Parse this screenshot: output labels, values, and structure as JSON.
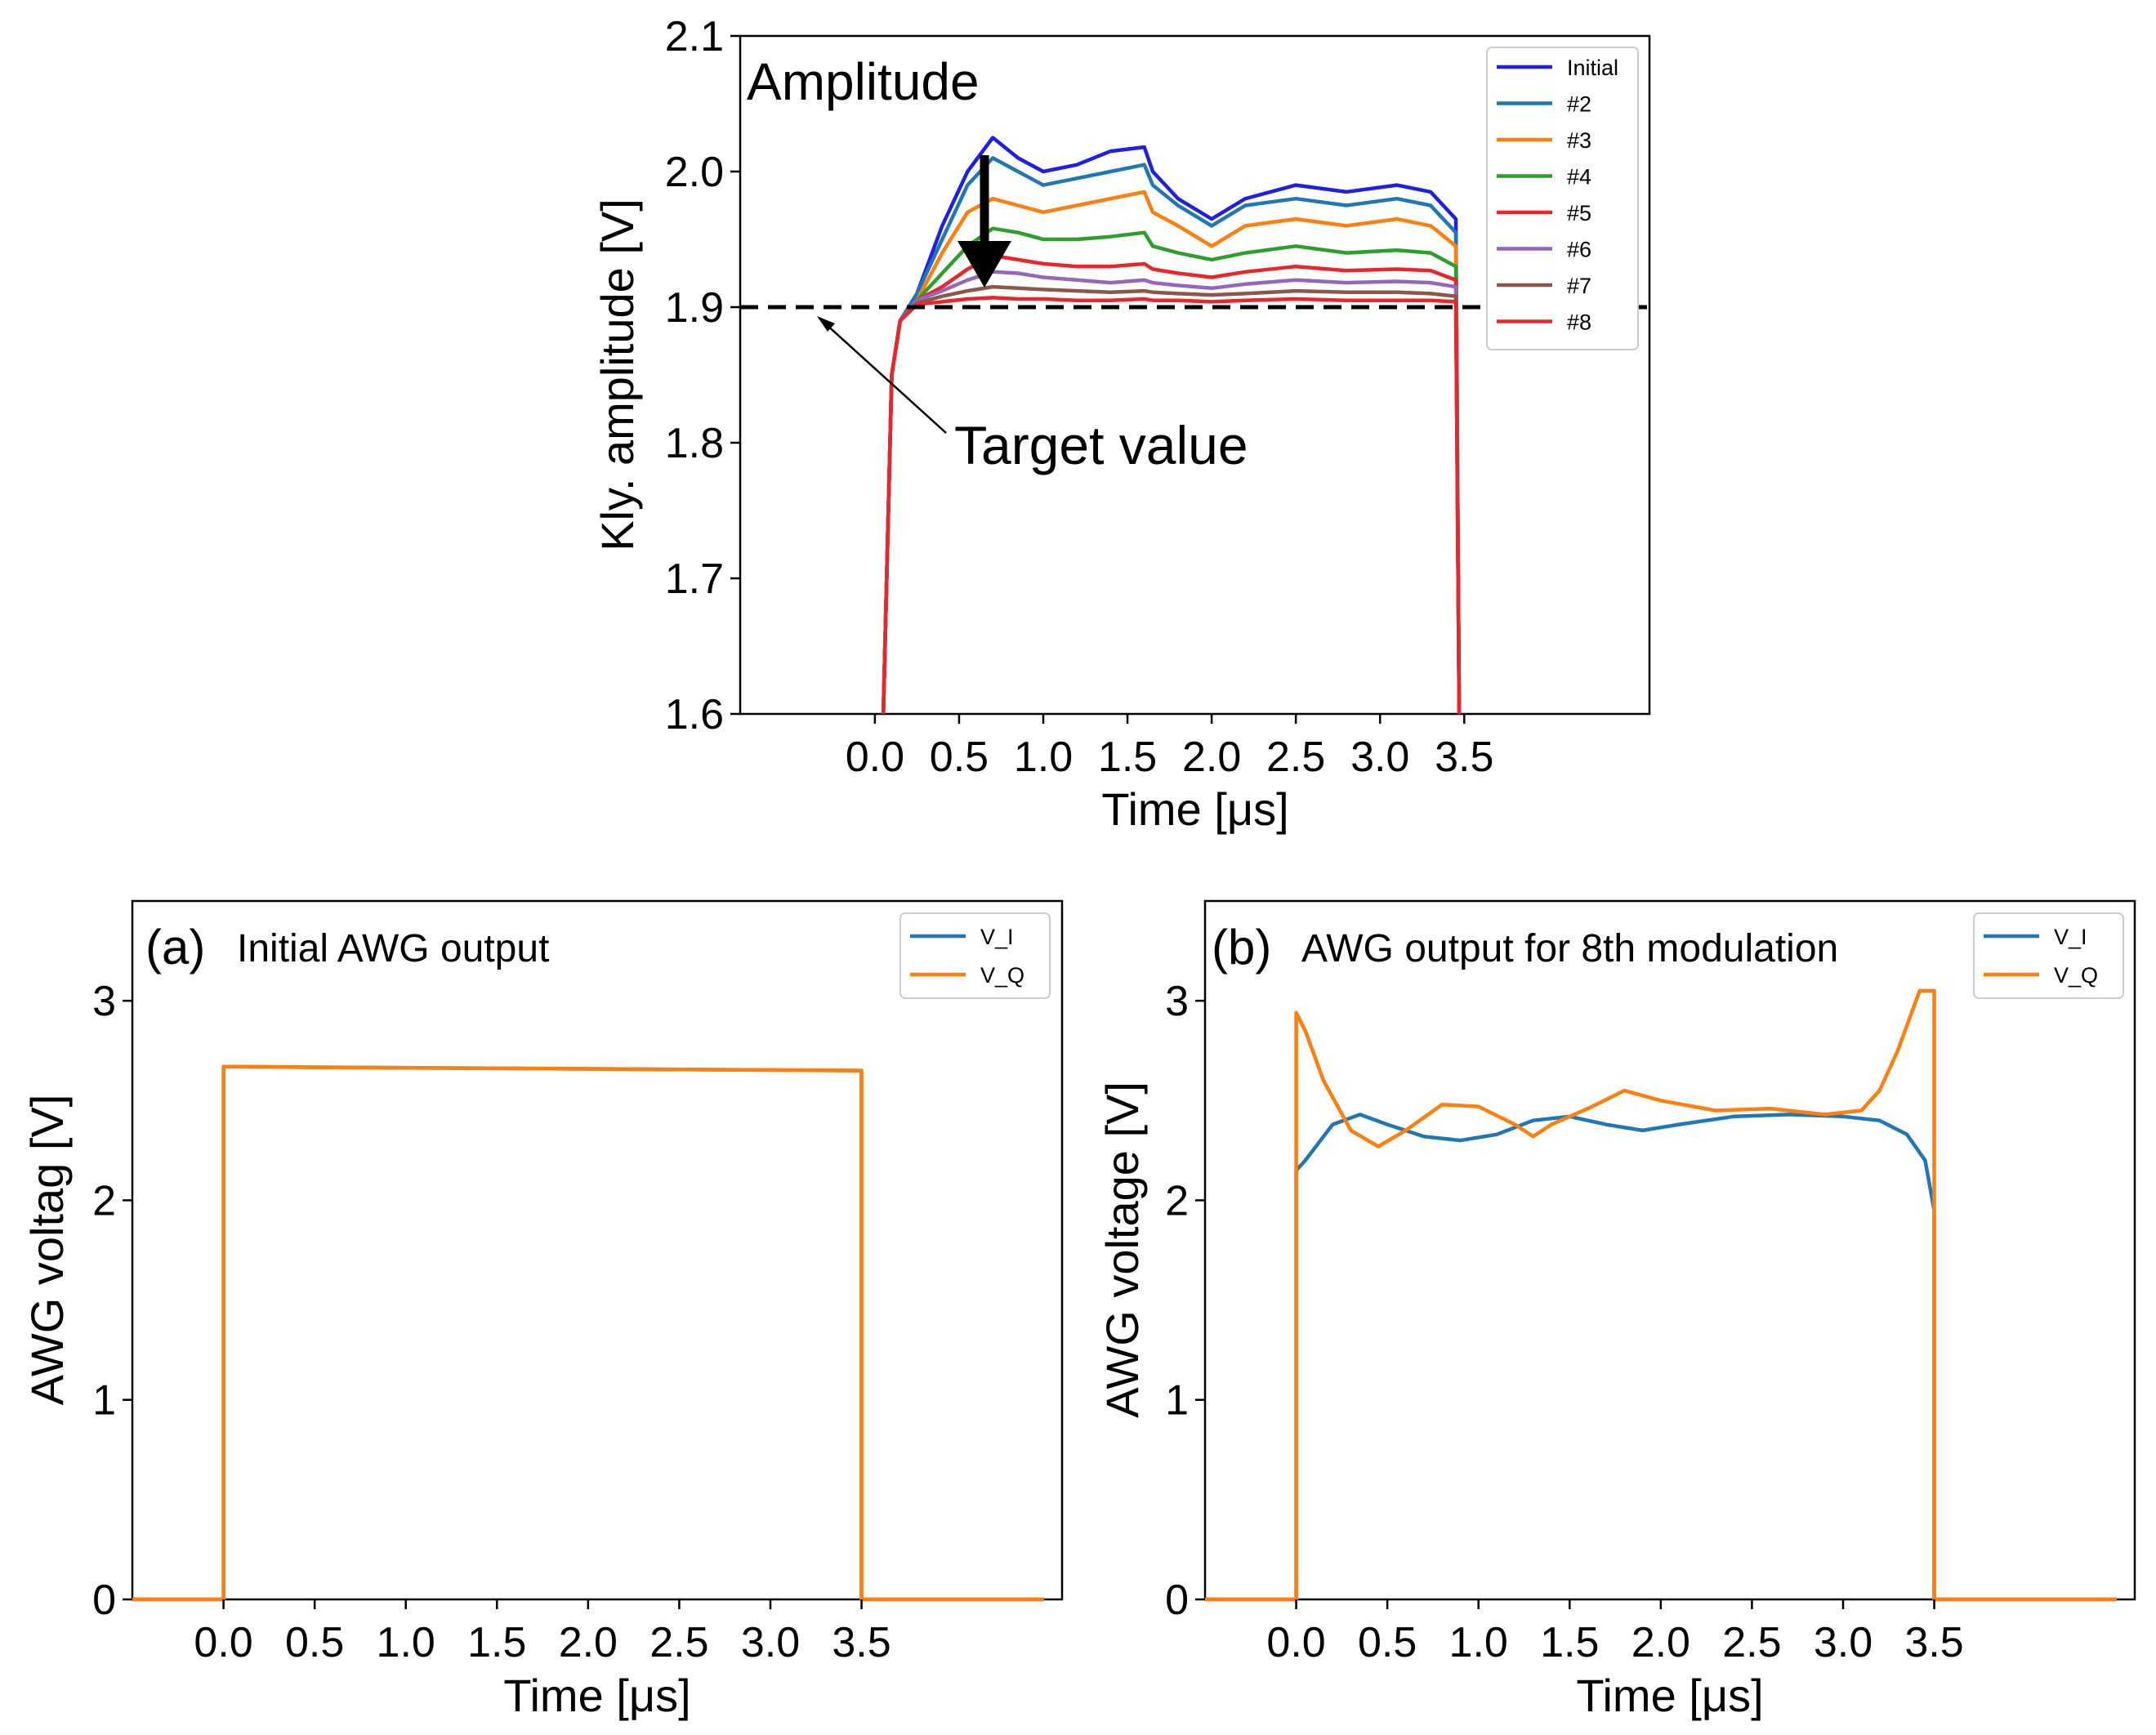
{
  "chart_data": [
    {
      "id": "top",
      "type": "line",
      "title": "Amplitude",
      "xlabel": "Time [μs]",
      "ylabel": "Kly. amplitude [V]",
      "xlim": [
        -0.8,
        4.6
      ],
      "ylim": [
        1.6,
        2.1
      ],
      "xticks": [
        "0.0",
        "0.5",
        "1.0",
        "1.5",
        "2.0",
        "2.5",
        "3.0",
        "3.5"
      ],
      "yticks": [
        "1.6",
        "1.7",
        "1.8",
        "1.9",
        "2.0",
        "2.1"
      ],
      "legend_position": "top-right",
      "target_value": 1.9,
      "annotation": "Target value",
      "colors": {
        "Initial": "#1f1fe6",
        "#2": "#1f77b4",
        "#3": "#ff7f0e",
        "#4": "#2ca02c",
        "#5": "#e8262b",
        "#6": "#9467bd",
        "#7": "#8c564b",
        "#8": "#e8262b"
      },
      "series": [
        {
          "name": "Initial",
          "points": [
            [
              0.05,
              1.6
            ],
            [
              0.1,
              1.85
            ],
            [
              0.15,
              1.89
            ],
            [
              0.25,
              1.91
            ],
            [
              0.4,
              1.96
            ],
            [
              0.55,
              2.0
            ],
            [
              0.7,
              2.025
            ],
            [
              0.85,
              2.01
            ],
            [
              1.0,
              2.0
            ],
            [
              1.2,
              2.005
            ],
            [
              1.4,
              2.015
            ],
            [
              1.6,
              2.018
            ],
            [
              1.65,
              2.0
            ],
            [
              1.8,
              1.98
            ],
            [
              2.0,
              1.965
            ],
            [
              2.2,
              1.98
            ],
            [
              2.5,
              1.99
            ],
            [
              2.8,
              1.985
            ],
            [
              3.1,
              1.99
            ],
            [
              3.3,
              1.985
            ],
            [
              3.45,
              1.965
            ],
            [
              3.47,
              1.6
            ]
          ]
        },
        {
          "name": "#2",
          "points": [
            [
              0.05,
              1.6
            ],
            [
              0.1,
              1.85
            ],
            [
              0.15,
              1.89
            ],
            [
              0.25,
              1.91
            ],
            [
              0.4,
              1.95
            ],
            [
              0.55,
              1.99
            ],
            [
              0.7,
              2.01
            ],
            [
              0.85,
              2.0
            ],
            [
              1.0,
              1.99
            ],
            [
              1.2,
              1.995
            ],
            [
              1.4,
              2.0
            ],
            [
              1.6,
              2.005
            ],
            [
              1.65,
              1.99
            ],
            [
              1.8,
              1.975
            ],
            [
              2.0,
              1.96
            ],
            [
              2.2,
              1.975
            ],
            [
              2.5,
              1.98
            ],
            [
              2.8,
              1.975
            ],
            [
              3.1,
              1.98
            ],
            [
              3.3,
              1.975
            ],
            [
              3.45,
              1.955
            ],
            [
              3.47,
              1.6
            ]
          ]
        },
        {
          "name": "#3",
          "points": [
            [
              0.05,
              1.6
            ],
            [
              0.1,
              1.85
            ],
            [
              0.15,
              1.89
            ],
            [
              0.25,
              1.905
            ],
            [
              0.4,
              1.94
            ],
            [
              0.55,
              1.97
            ],
            [
              0.7,
              1.98
            ],
            [
              0.85,
              1.975
            ],
            [
              1.0,
              1.97
            ],
            [
              1.2,
              1.975
            ],
            [
              1.4,
              1.98
            ],
            [
              1.6,
              1.985
            ],
            [
              1.65,
              1.97
            ],
            [
              1.8,
              1.96
            ],
            [
              2.0,
              1.945
            ],
            [
              2.2,
              1.96
            ],
            [
              2.5,
              1.965
            ],
            [
              2.8,
              1.96
            ],
            [
              3.1,
              1.965
            ],
            [
              3.3,
              1.96
            ],
            [
              3.45,
              1.945
            ],
            [
              3.47,
              1.6
            ]
          ]
        },
        {
          "name": "#4",
          "points": [
            [
              0.05,
              1.6
            ],
            [
              0.1,
              1.85
            ],
            [
              0.15,
              1.89
            ],
            [
              0.25,
              1.905
            ],
            [
              0.4,
              1.925
            ],
            [
              0.55,
              1.945
            ],
            [
              0.7,
              1.958
            ],
            [
              0.85,
              1.955
            ],
            [
              1.0,
              1.95
            ],
            [
              1.2,
              1.95
            ],
            [
              1.4,
              1.952
            ],
            [
              1.6,
              1.955
            ],
            [
              1.65,
              1.945
            ],
            [
              1.8,
              1.94
            ],
            [
              2.0,
              1.935
            ],
            [
              2.2,
              1.94
            ],
            [
              2.5,
              1.945
            ],
            [
              2.8,
              1.94
            ],
            [
              3.1,
              1.942
            ],
            [
              3.3,
              1.94
            ],
            [
              3.45,
              1.93
            ],
            [
              3.47,
              1.6
            ]
          ]
        },
        {
          "name": "#5",
          "points": [
            [
              0.05,
              1.6
            ],
            [
              0.1,
              1.85
            ],
            [
              0.15,
              1.89
            ],
            [
              0.25,
              1.905
            ],
            [
              0.4,
              1.915
            ],
            [
              0.55,
              1.928
            ],
            [
              0.7,
              1.938
            ],
            [
              0.85,
              1.935
            ],
            [
              1.0,
              1.932
            ],
            [
              1.2,
              1.93
            ],
            [
              1.4,
              1.93
            ],
            [
              1.6,
              1.932
            ],
            [
              1.65,
              1.928
            ],
            [
              1.8,
              1.925
            ],
            [
              2.0,
              1.922
            ],
            [
              2.2,
              1.926
            ],
            [
              2.5,
              1.93
            ],
            [
              2.8,
              1.927
            ],
            [
              3.1,
              1.928
            ],
            [
              3.3,
              1.927
            ],
            [
              3.45,
              1.92
            ],
            [
              3.47,
              1.6
            ]
          ]
        },
        {
          "name": "#6",
          "points": [
            [
              0.05,
              1.6
            ],
            [
              0.1,
              1.85
            ],
            [
              0.15,
              1.89
            ],
            [
              0.25,
              1.905
            ],
            [
              0.4,
              1.912
            ],
            [
              0.55,
              1.92
            ],
            [
              0.7,
              1.926
            ],
            [
              0.85,
              1.925
            ],
            [
              1.0,
              1.922
            ],
            [
              1.2,
              1.92
            ],
            [
              1.4,
              1.918
            ],
            [
              1.6,
              1.92
            ],
            [
              1.65,
              1.918
            ],
            [
              1.8,
              1.916
            ],
            [
              2.0,
              1.914
            ],
            [
              2.2,
              1.917
            ],
            [
              2.5,
              1.92
            ],
            [
              2.8,
              1.918
            ],
            [
              3.1,
              1.919
            ],
            [
              3.3,
              1.918
            ],
            [
              3.45,
              1.915
            ],
            [
              3.47,
              1.6
            ]
          ]
        },
        {
          "name": "#7",
          "points": [
            [
              0.05,
              1.6
            ],
            [
              0.1,
              1.85
            ],
            [
              0.15,
              1.89
            ],
            [
              0.25,
              1.903
            ],
            [
              0.4,
              1.908
            ],
            [
              0.55,
              1.912
            ],
            [
              0.7,
              1.915
            ],
            [
              0.85,
              1.914
            ],
            [
              1.0,
              1.913
            ],
            [
              1.2,
              1.912
            ],
            [
              1.4,
              1.911
            ],
            [
              1.6,
              1.912
            ],
            [
              1.65,
              1.911
            ],
            [
              1.8,
              1.91
            ],
            [
              2.0,
              1.909
            ],
            [
              2.2,
              1.91
            ],
            [
              2.5,
              1.912
            ],
            [
              2.8,
              1.911
            ],
            [
              3.1,
              1.911
            ],
            [
              3.3,
              1.91
            ],
            [
              3.45,
              1.908
            ],
            [
              3.47,
              1.6
            ]
          ]
        },
        {
          "name": "#8",
          "points": [
            [
              0.05,
              1.6
            ],
            [
              0.1,
              1.85
            ],
            [
              0.15,
              1.89
            ],
            [
              0.25,
              1.902
            ],
            [
              0.4,
              1.904
            ],
            [
              0.55,
              1.906
            ],
            [
              0.7,
              1.907
            ],
            [
              0.85,
              1.906
            ],
            [
              1.0,
              1.906
            ],
            [
              1.2,
              1.905
            ],
            [
              1.4,
              1.905
            ],
            [
              1.6,
              1.906
            ],
            [
              1.65,
              1.905
            ],
            [
              1.8,
              1.905
            ],
            [
              2.0,
              1.904
            ],
            [
              2.2,
              1.905
            ],
            [
              2.5,
              1.906
            ],
            [
              2.8,
              1.905
            ],
            [
              3.1,
              1.905
            ],
            [
              3.3,
              1.905
            ],
            [
              3.45,
              1.904
            ],
            [
              3.47,
              1.6
            ]
          ]
        }
      ]
    },
    {
      "id": "a",
      "type": "line",
      "tag": "(a)",
      "title": "Initial AWG output",
      "xlabel": "Time [μs]",
      "ylabel": "AWG voltag [V]",
      "xlim": [
        -0.5,
        4.6
      ],
      "ylim": [
        0,
        3.5
      ],
      "xticks": [
        "0.0",
        "0.5",
        "1.0",
        "1.5",
        "2.0",
        "2.5",
        "3.0",
        "3.5"
      ],
      "yticks": [
        "0",
        "1",
        "2",
        "3"
      ],
      "legend_position": "top-right",
      "colors": {
        "V_I": "#1f77b4",
        "V_Q": "#ff7f0e"
      },
      "series": [
        {
          "name": "V_I",
          "points": [
            [
              -0.5,
              0
            ],
            [
              0,
              0
            ],
            [
              0,
              2.67
            ],
            [
              3.5,
              2.65
            ],
            [
              3.5,
              0
            ],
            [
              4.5,
              0
            ]
          ]
        },
        {
          "name": "V_Q",
          "points": [
            [
              -0.5,
              0
            ],
            [
              0,
              0
            ],
            [
              0,
              2.67
            ],
            [
              3.5,
              2.65
            ],
            [
              3.5,
              0
            ],
            [
              4.5,
              0
            ]
          ]
        }
      ]
    },
    {
      "id": "b",
      "type": "line",
      "tag": "(b)",
      "title": "AWG output for 8th modulation",
      "xlabel": "Time [μs]",
      "ylabel": "AWG voltage [V]",
      "xlim": [
        -0.5,
        4.6
      ],
      "ylim": [
        0,
        3.5
      ],
      "xticks": [
        "0.0",
        "0.5",
        "1.0",
        "1.5",
        "2.0",
        "2.5",
        "3.0",
        "3.5"
      ],
      "yticks": [
        "0",
        "1",
        "2",
        "3"
      ],
      "legend_position": "top-right",
      "colors": {
        "V_I": "#1f77b4",
        "V_Q": "#ff7f0e"
      },
      "series": [
        {
          "name": "V_I",
          "points": [
            [
              -0.5,
              0
            ],
            [
              0,
              0
            ],
            [
              0,
              2.15
            ],
            [
              0.05,
              2.2
            ],
            [
              0.2,
              2.38
            ],
            [
              0.35,
              2.43
            ],
            [
              0.5,
              2.38
            ],
            [
              0.7,
              2.32
            ],
            [
              0.9,
              2.3
            ],
            [
              1.1,
              2.33
            ],
            [
              1.3,
              2.4
            ],
            [
              1.5,
              2.42
            ],
            [
              1.7,
              2.38
            ],
            [
              1.9,
              2.35
            ],
            [
              2.1,
              2.38
            ],
            [
              2.4,
              2.42
            ],
            [
              2.7,
              2.43
            ],
            [
              3.0,
              2.42
            ],
            [
              3.2,
              2.4
            ],
            [
              3.35,
              2.33
            ],
            [
              3.45,
              2.2
            ],
            [
              3.5,
              1.95
            ],
            [
              3.5,
              0
            ],
            [
              4.5,
              0
            ]
          ]
        },
        {
          "name": "V_Q",
          "points": [
            [
              -0.5,
              0
            ],
            [
              0,
              0
            ],
            [
              0,
              2.94
            ],
            [
              0.05,
              2.85
            ],
            [
              0.15,
              2.6
            ],
            [
              0.3,
              2.35
            ],
            [
              0.45,
              2.27
            ],
            [
              0.6,
              2.35
            ],
            [
              0.8,
              2.48
            ],
            [
              1.0,
              2.47
            ],
            [
              1.2,
              2.38
            ],
            [
              1.3,
              2.32
            ],
            [
              1.4,
              2.38
            ],
            [
              1.6,
              2.46
            ],
            [
              1.8,
              2.55
            ],
            [
              2.0,
              2.5
            ],
            [
              2.3,
              2.45
            ],
            [
              2.6,
              2.46
            ],
            [
              2.9,
              2.43
            ],
            [
              3.1,
              2.45
            ],
            [
              3.2,
              2.55
            ],
            [
              3.3,
              2.75
            ],
            [
              3.4,
              3.0
            ],
            [
              3.42,
              3.05
            ],
            [
              3.5,
              3.05
            ],
            [
              3.5,
              0
            ],
            [
              4.5,
              0
            ]
          ]
        }
      ]
    }
  ]
}
